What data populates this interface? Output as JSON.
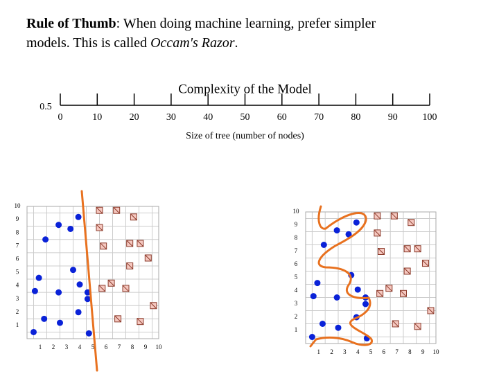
{
  "slide": {
    "heading": {
      "bold": "Rule of Thumb",
      "line1": ": When doing machine learning, prefer simpler",
      "line2": "models. This is called ",
      "italic": "Occam's Razor",
      "end": "."
    }
  },
  "chart_data": [
    {
      "type": "axis",
      "title": "Complexity of the Model",
      "xlabel": "Size of tree (number of nodes)",
      "xlim": [
        0,
        100
      ],
      "xticks": [
        0,
        10,
        20,
        30,
        40,
        50,
        60,
        70,
        80,
        90,
        100
      ],
      "yticks": [
        0.5
      ]
    },
    {
      "type": "scatter",
      "xlim": [
        0,
        10
      ],
      "ylim": [
        0,
        10
      ],
      "xticks": [
        1,
        2,
        3,
        4,
        5,
        6,
        7,
        8,
        9,
        10
      ],
      "yticks": [
        1,
        2,
        3,
        4,
        5,
        6,
        7,
        8,
        9,
        10
      ],
      "grid": true,
      "series": [
        {
          "color": "#0a22d8",
          "marker": "circle",
          "x": [
            0.5,
            1.3,
            2.5,
            3.9,
            4.7,
            0.6,
            2.4,
            4.0,
            4.6,
            4.6,
            0.9,
            3.5,
            1.4,
            2.4,
            3.3,
            3.9
          ],
          "values": [
            0.5,
            1.5,
            1.2,
            2.0,
            0.4,
            3.6,
            3.5,
            4.1,
            3.5,
            3.0,
            4.6,
            5.2,
            7.5,
            8.6,
            8.3,
            9.2
          ]
        },
        {
          "color": "#8b3a2a",
          "marker": "square",
          "x": [
            5.5,
            6.8,
            8.1,
            5.5,
            7.8,
            8.6,
            5.8,
            9.2,
            7.8,
            6.4,
            7.5,
            5.7,
            9.6,
            6.9,
            8.6
          ],
          "values": [
            9.7,
            9.7,
            9.2,
            8.4,
            7.2,
            7.2,
            7.0,
            6.1,
            5.5,
            4.2,
            3.8,
            3.8,
            2.5,
            1.5,
            1.3
          ]
        }
      ]
    },
    {
      "type": "scatter",
      "xlim": [
        0,
        10
      ],
      "ylim": [
        0,
        10
      ],
      "xticks": [
        1,
        2,
        3,
        4,
        5,
        6,
        7,
        8,
        9,
        10
      ],
      "yticks": [
        1,
        2,
        3,
        4,
        5,
        6,
        7,
        8,
        9,
        10
      ],
      "grid": true,
      "series": [
        {
          "color": "#0a22d8",
          "marker": "circle",
          "x": [
            0.5,
            1.3,
            2.5,
            3.9,
            4.7,
            0.6,
            2.4,
            4.0,
            4.6,
            4.6,
            0.9,
            3.5,
            1.4,
            2.4,
            3.3,
            3.9
          ],
          "values": [
            0.5,
            1.5,
            1.2,
            2.0,
            0.4,
            3.6,
            3.5,
            4.1,
            3.5,
            3.0,
            4.6,
            5.2,
            7.5,
            8.6,
            8.3,
            9.2
          ]
        },
        {
          "color": "#8b3a2a",
          "marker": "square",
          "x": [
            5.5,
            6.8,
            8.1,
            5.5,
            7.8,
            8.6,
            5.8,
            9.2,
            7.8,
            6.4,
            7.5,
            5.7,
            9.6,
            6.9,
            8.6
          ],
          "values": [
            9.7,
            9.7,
            9.2,
            8.4,
            7.2,
            7.2,
            7.0,
            6.1,
            5.5,
            4.2,
            3.8,
            3.8,
            2.5,
            1.5,
            1.3
          ]
        }
      ]
    }
  ]
}
